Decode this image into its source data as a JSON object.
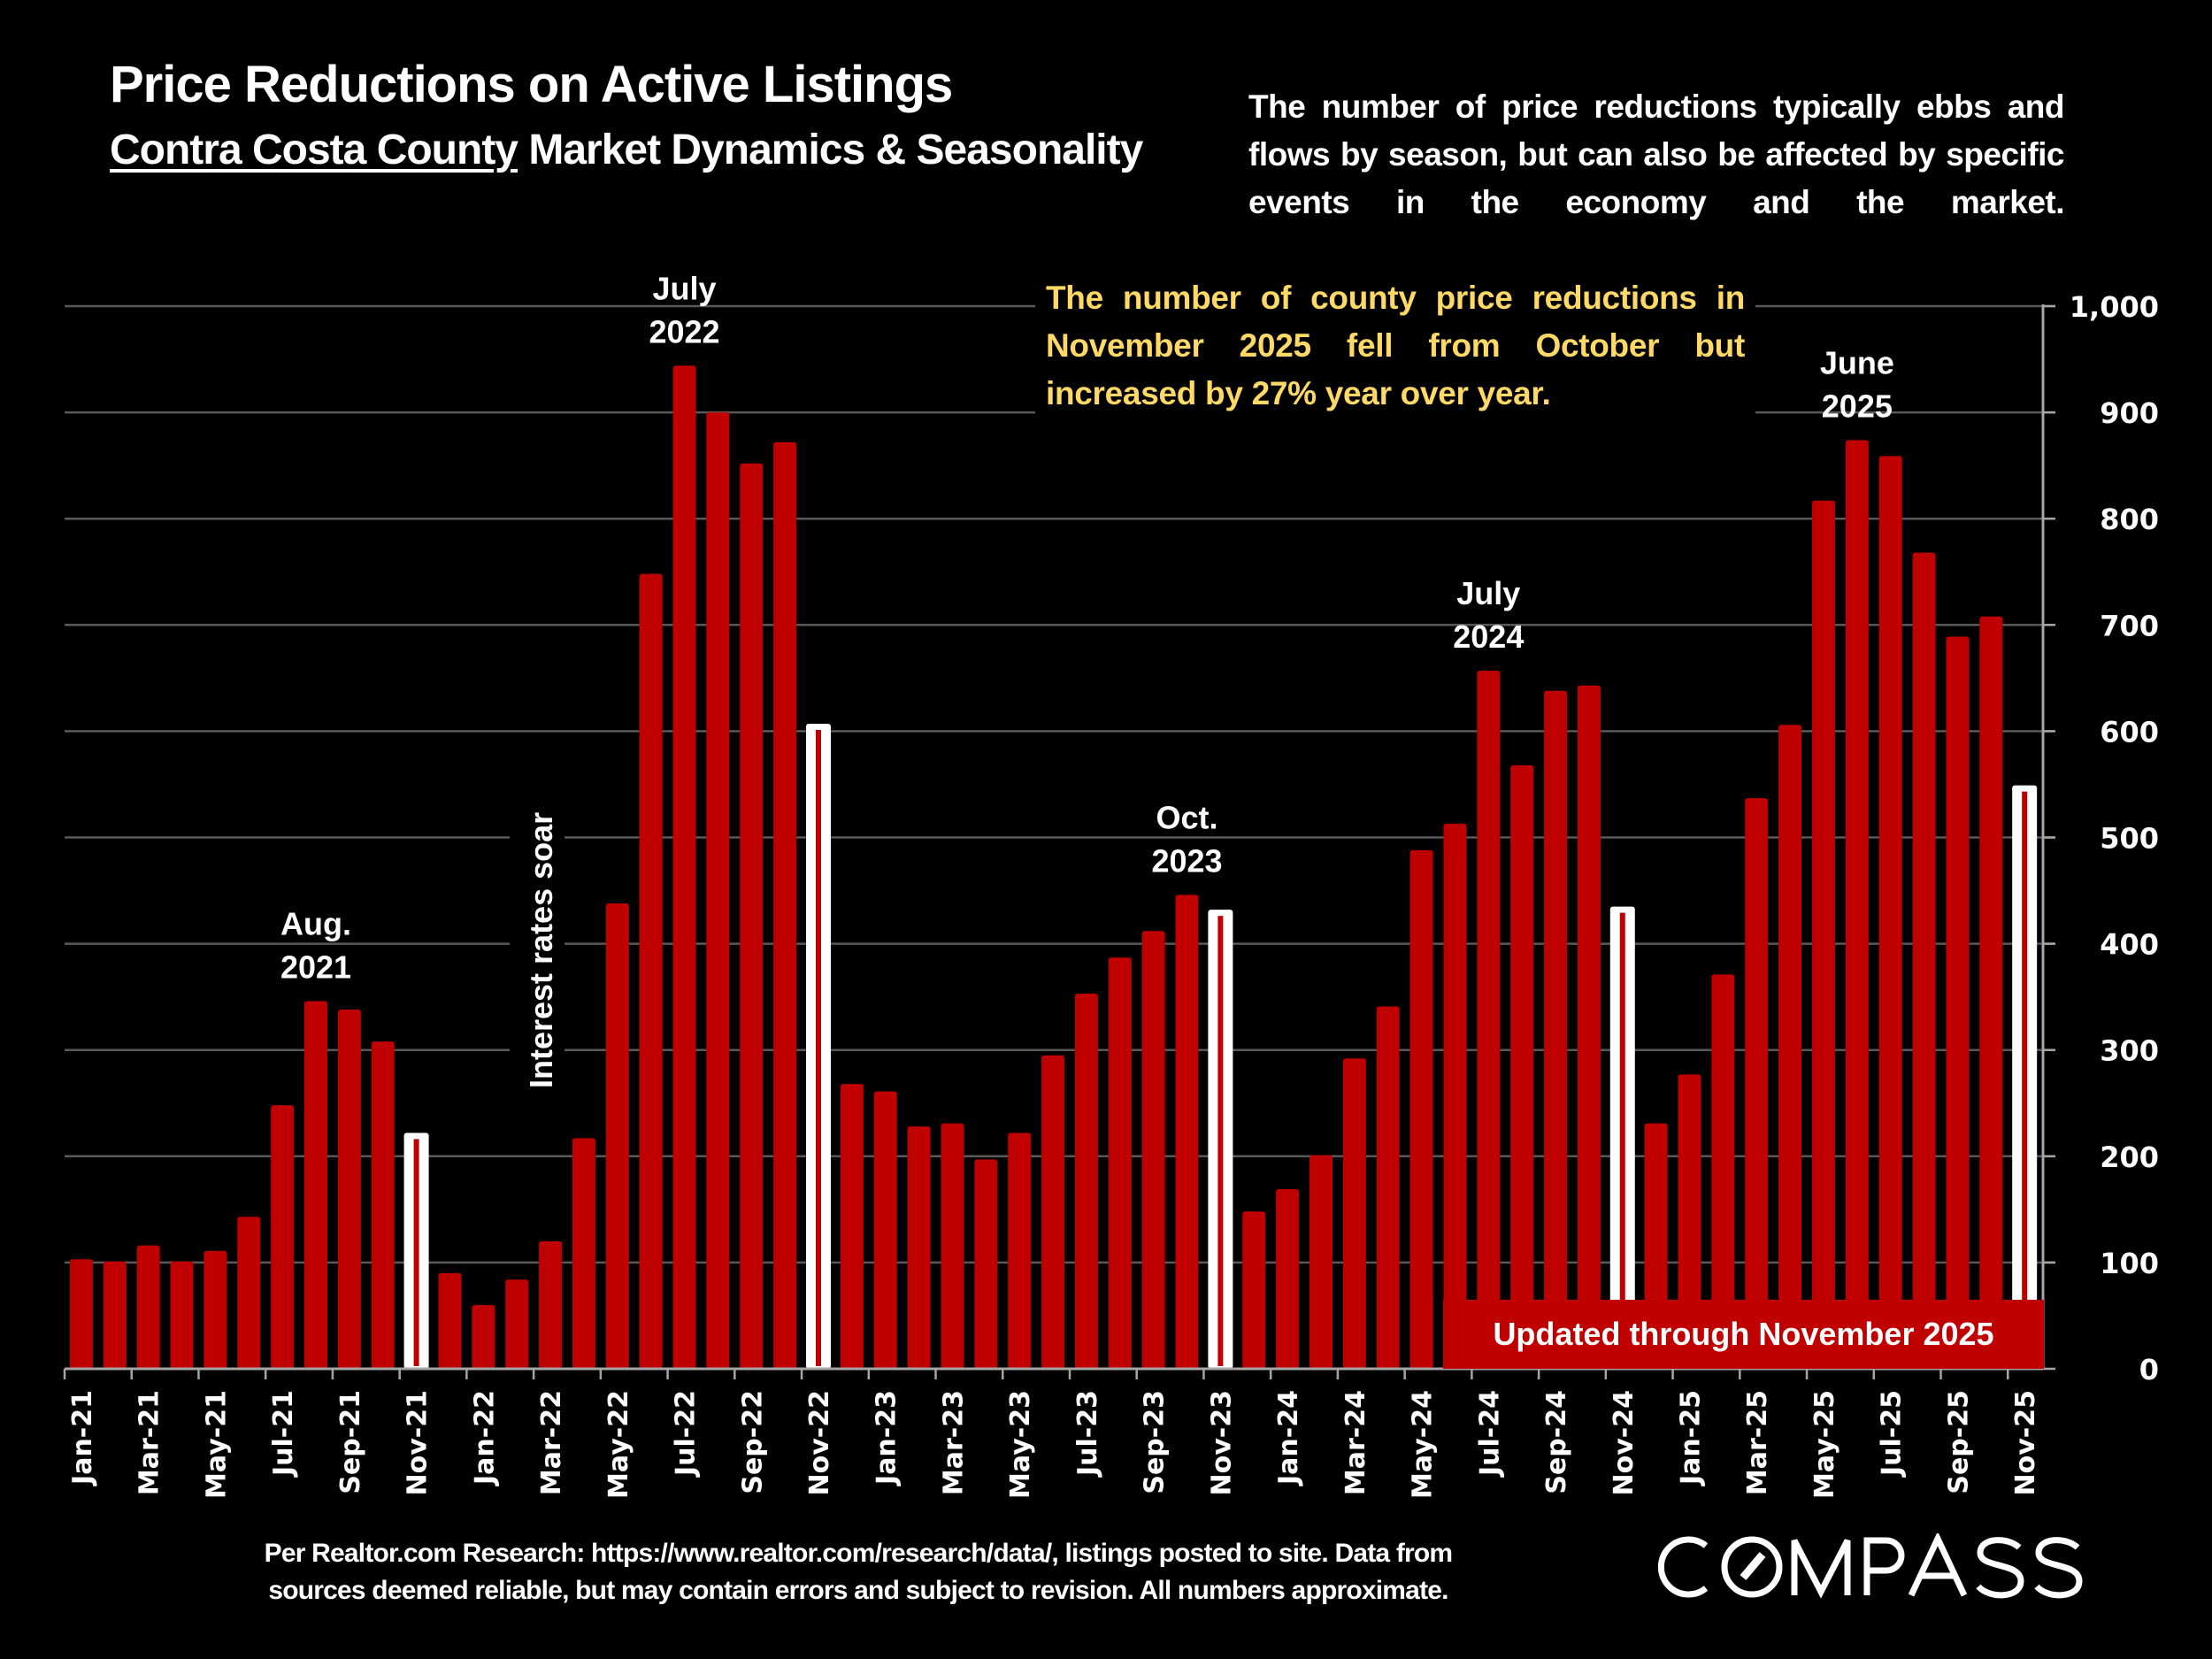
{
  "header": {
    "title": "Price Reductions on Active Listings",
    "subtitle_underlined": "Contra Costa County",
    "subtitle_rest": " Market Dynamics & Seasonality"
  },
  "intro_text": "The number of price reductions typically ebbs and flows by season, but can also be affected by specific events in the economy and the market.",
  "callout_text": "The number of county price reductions in November 2025 fell from October but increased by 27% year over year.",
  "updated_label": "Updated through November 2025",
  "footnote": {
    "line1": "Per Realtor.com Research:  https://www.realtor.com/research/data/, listings posted to site. Data from",
    "line2": "sources deemed reliable, but may contain errors and subject to revision. All numbers approximate."
  },
  "logo": {
    "text": "COMPASS"
  },
  "colors": {
    "bar": "#c00000",
    "highlight_outline": "#ffffff",
    "callout": "#ffd966",
    "grid": "#595959",
    "axis": "#a6a6a6"
  },
  "chart_data": {
    "type": "bar",
    "title": "Price Reductions on Active Listings",
    "xlabel": "",
    "ylabel": "",
    "ylim": [
      0,
      1000
    ],
    "yticks": [
      0,
      100,
      200,
      300,
      400,
      500,
      600,
      700,
      800,
      900,
      1000
    ],
    "ytick_labels": [
      "0",
      "100",
      "200",
      "300",
      "400",
      "500",
      "600",
      "700",
      "800",
      "900",
      "1,000"
    ],
    "y_axis_side": "right",
    "grid": true,
    "categories": [
      "Jan-21",
      "Feb-21",
      "Mar-21",
      "Apr-21",
      "May-21",
      "Jun-21",
      "Jul-21",
      "Aug-21",
      "Sep-21",
      "Oct-21",
      "Nov-21",
      "Dec-21",
      "Jan-22",
      "Feb-22",
      "Mar-22",
      "Apr-22",
      "May-22",
      "Jun-22",
      "Jul-22",
      "Aug-22",
      "Sep-22",
      "Oct-22",
      "Nov-22",
      "Dec-22",
      "Jan-23",
      "Feb-23",
      "Mar-23",
      "Apr-23",
      "May-23",
      "Jun-23",
      "Jul-23",
      "Aug-23",
      "Sep-23",
      "Oct-23",
      "Nov-23",
      "Dec-23",
      "Jan-24",
      "Feb-24",
      "Mar-24",
      "Apr-24",
      "May-24",
      "Jun-24",
      "Jul-24",
      "Aug-24",
      "Sep-24",
      "Oct-24",
      "Nov-24",
      "Dec-24",
      "Jan-25",
      "Feb-25",
      "Mar-25",
      "Apr-25",
      "May-25",
      "Jun-25",
      "Jul-25",
      "Aug-25",
      "Sep-25",
      "Oct-25",
      "Nov-25"
    ],
    "values": [
      103,
      101,
      116,
      101,
      111,
      143,
      248,
      346,
      338,
      308,
      222,
      90,
      60,
      84,
      120,
      217,
      438,
      748,
      944,
      900,
      852,
      872,
      607,
      268,
      261,
      228,
      231,
      197,
      222,
      295,
      353,
      387,
      412,
      446,
      432,
      148,
      169,
      201,
      292,
      341,
      488,
      513,
      657,
      568,
      638,
      643,
      435,
      231,
      277,
      371,
      537,
      606,
      817,
      874,
      859,
      768,
      689,
      708,
      549
    ],
    "highlighted_categories": [
      "Nov-21",
      "Nov-22",
      "Nov-23",
      "Nov-24",
      "Nov-25"
    ],
    "x_tick_labels_every": 2,
    "annotations": [
      {
        "category": "Aug-21",
        "lines": [
          "Aug.",
          "2021"
        ]
      },
      {
        "category": "Jul-22",
        "lines": [
          "July",
          "2022"
        ]
      },
      {
        "category": "Oct-23",
        "lines": [
          "Oct.",
          "2023"
        ]
      },
      {
        "category": "Jul-24",
        "lines": [
          "July",
          "2024"
        ]
      },
      {
        "category": "Jun-25",
        "lines": [
          "June",
          "2025"
        ]
      }
    ],
    "vertical_annotation": {
      "category": "Apr-22",
      "text": "Interest rates soar"
    }
  }
}
